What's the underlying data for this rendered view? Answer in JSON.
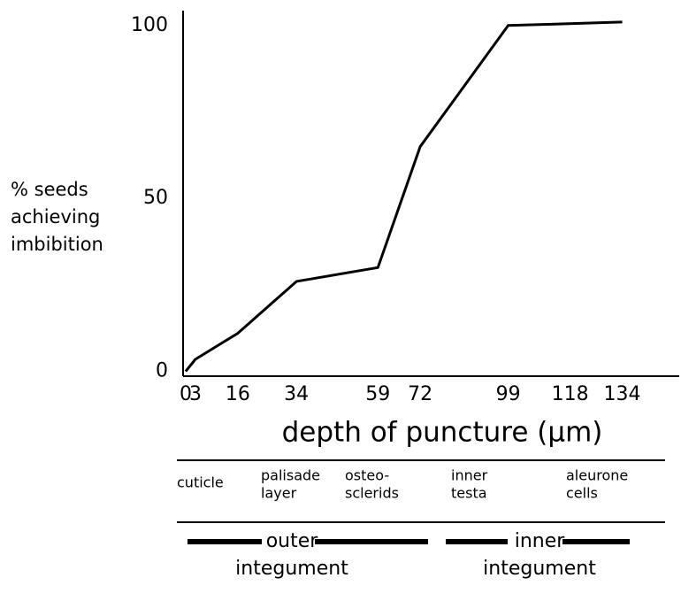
{
  "chart_data": {
    "type": "line",
    "y_label": [
      "% seeds",
      "achieving",
      "imbibition"
    ],
    "x_label": "depth of puncture (µm)",
    "x": [
      0,
      3,
      16,
      34,
      59,
      72,
      99,
      134
    ],
    "series": [
      {
        "color": "#000000",
        "values": [
          0,
          3.5,
          11,
          26,
          30,
          65,
          100,
          101
        ]
      }
    ],
    "xlim": [
      -0.8,
      151.5
    ],
    "xticks": [
      0,
      3,
      16,
      34,
      59,
      72,
      99,
      118,
      134
    ],
    "ylim": [
      -1.4,
      104.3
    ],
    "yticks": [
      0,
      50,
      100
    ],
    "grid": false
  },
  "layers": [
    [
      "cuticle"
    ],
    [
      "palisade",
      "layer"
    ],
    [
      "osteo-",
      "sclerids"
    ],
    [
      "inner",
      "testa"
    ],
    [
      "aleurone",
      "cells"
    ]
  ],
  "integuments": [
    [
      "outer",
      "integument"
    ],
    [
      "inner",
      "integument"
    ]
  ]
}
